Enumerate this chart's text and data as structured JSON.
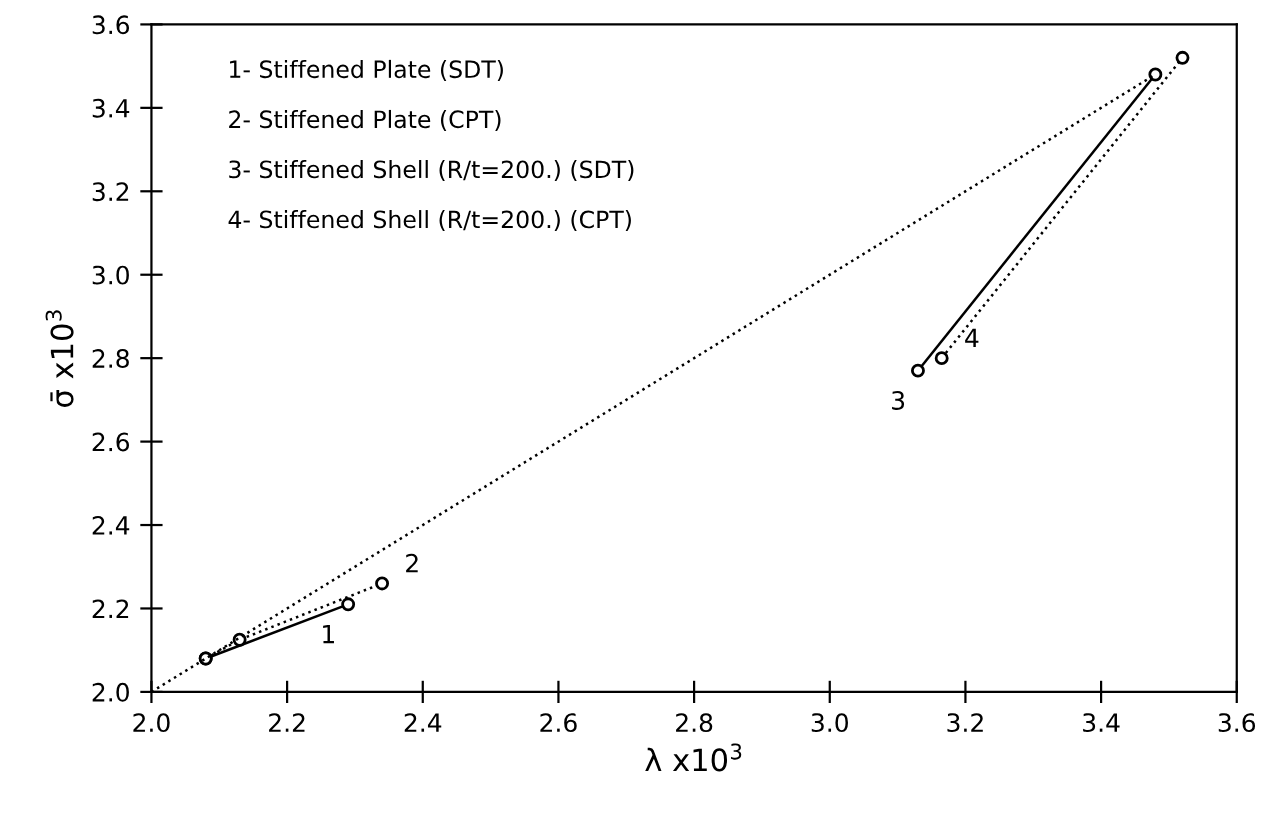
{
  "chart_data": {
    "type": "line",
    "xlabel": "λ x10$^{3}$",
    "ylabel": "σ̄ x10$^{3}$",
    "xlim": [
      2.0,
      3.6
    ],
    "xticks": [
      {
        "value": 2.0,
        "label": "2.0"
      },
      2.2,
      2.4,
      2.6,
      2.8,
      {
        "value": 3.0,
        "label": "3.0"
      },
      3.2,
      3.4,
      3.6
    ],
    "ylim": [
      2.0,
      3.6
    ],
    "yticks": [
      {
        "value": 2.0,
        "label": "2.0"
      },
      2.2,
      2.4,
      2.6,
      2.8,
      {
        "value": 3.0,
        "label": "3.0"
      },
      3.2,
      3.4,
      3.6
    ],
    "grid": false,
    "legend": false,
    "series": [
      {
        "color": "#000000",
        "line_style": "solid",
        "marker": "circle",
        "x": [
          2.08,
          2.29
        ],
        "values": [
          2.08,
          2.21
        ]
      },
      {
        "color": "#000000",
        "line_style": "dotted",
        "marker": "circle",
        "x": [
          2.08,
          2.13,
          2.34
        ],
        "values": [
          2.08,
          2.125,
          2.26
        ]
      },
      {
        "color": "#000000",
        "line_style": "solid",
        "marker": "circle",
        "x": [
          3.13,
          3.48
        ],
        "values": [
          2.77,
          3.48
        ]
      },
      {
        "color": "#000000",
        "line_style": "dotted",
        "marker": "circle",
        "x": [
          3.165,
          3.52
        ],
        "values": [
          2.8,
          3.52
        ]
      },
      {
        "color": "#000000",
        "line_style": "dotted",
        "x": [
          2.0,
          3.48
        ],
        "values": [
          2.0,
          3.48
        ]
      }
    ],
    "annotations": [
      "1- Stiffened Plate (SDT)",
      "2- Stiffened Plate (CPT)",
      "3- Stiffened Shell (R/t=200.) (SDT)",
      "4- Stiffened Shell (R/t=200.) (CPT)",
      {
        "text": "1",
        "x": 2.29,
        "y": 2.21
      },
      {
        "text": "2",
        "x": 2.34,
        "y": 2.26
      },
      {
        "text": "3",
        "x": 3.13,
        "y": 2.77
      },
      {
        "text": "4",
        "x": 3.165,
        "y": 2.8
      }
    ]
  }
}
